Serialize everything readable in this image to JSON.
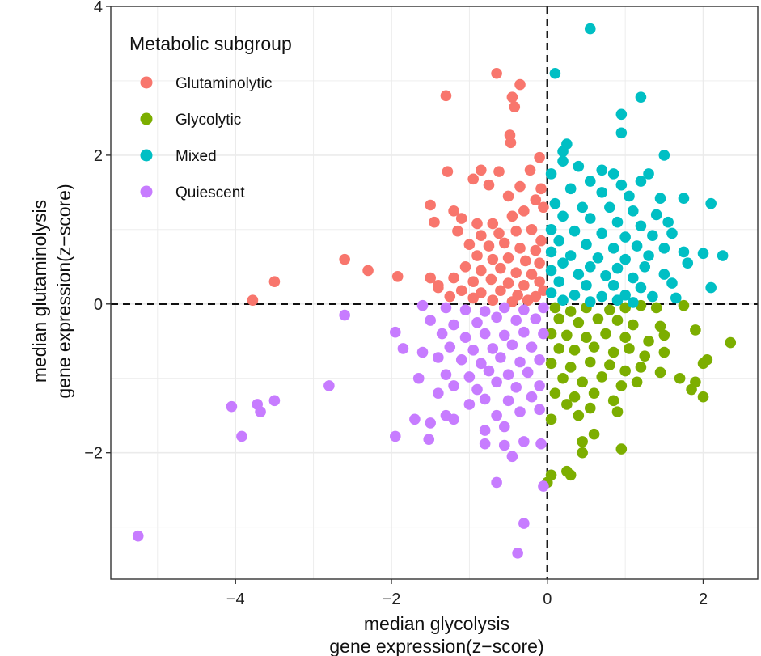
{
  "chart_data": {
    "type": "scatter",
    "xlabel": "median glycolysis",
    "xlabel_line2": "gene expression(z−score)",
    "ylabel": "median glutaminolysis",
    "ylabel_line2": "gene expression(z−score)",
    "xlim": [
      -5.6,
      2.7
    ],
    "ylim": [
      -3.7,
      4.0
    ],
    "xticks": [
      -4,
      -2,
      0,
      2
    ],
    "xtick_labels": [
      "−4",
      "−2",
      "0",
      "2"
    ],
    "yticks": [
      -2,
      0,
      2,
      4
    ],
    "ytick_labels": [
      "−2",
      "0",
      "2",
      "4"
    ],
    "grid": true,
    "reference_lines": {
      "x": 0,
      "y": 0,
      "style": "dashed"
    },
    "legend": {
      "title": "Metabolic subgroup",
      "position": "top-left"
    },
    "series": [
      {
        "name": "Glutaminolytic",
        "color": "#F8766D",
        "points": [
          [
            -0.65,
            3.1
          ],
          [
            -0.35,
            2.95
          ],
          [
            -1.3,
            2.8
          ],
          [
            -0.45,
            2.78
          ],
          [
            -0.42,
            2.65
          ],
          [
            -0.48,
            2.27
          ],
          [
            -0.47,
            2.17
          ],
          [
            -0.1,
            1.97
          ],
          [
            -1.28,
            1.78
          ],
          [
            -0.85,
            1.8
          ],
          [
            -0.62,
            1.78
          ],
          [
            -0.22,
            1.8
          ],
          [
            -0.95,
            1.68
          ],
          [
            -0.75,
            1.6
          ],
          [
            -0.35,
            1.58
          ],
          [
            -0.08,
            1.55
          ],
          [
            -0.5,
            1.45
          ],
          [
            -0.15,
            1.4
          ],
          [
            -1.5,
            1.33
          ],
          [
            -1.2,
            1.25
          ],
          [
            -1.1,
            1.15
          ],
          [
            -0.9,
            1.08
          ],
          [
            -0.7,
            1.08
          ],
          [
            -0.45,
            1.18
          ],
          [
            -0.3,
            1.25
          ],
          [
            -0.05,
            1.3
          ],
          [
            -1.45,
            1.1
          ],
          [
            -1.15,
            0.98
          ],
          [
            -0.85,
            0.92
          ],
          [
            -0.62,
            0.95
          ],
          [
            -0.4,
            0.98
          ],
          [
            -0.2,
            1.0
          ],
          [
            -0.08,
            0.85
          ],
          [
            -1.0,
            0.8
          ],
          [
            -0.75,
            0.78
          ],
          [
            -0.55,
            0.82
          ],
          [
            -0.35,
            0.75
          ],
          [
            -0.15,
            0.72
          ],
          [
            -0.9,
            0.65
          ],
          [
            -0.7,
            0.6
          ],
          [
            -0.5,
            0.62
          ],
          [
            -0.28,
            0.58
          ],
          [
            -0.1,
            0.55
          ],
          [
            -1.05,
            0.5
          ],
          [
            -0.85,
            0.45
          ],
          [
            -0.6,
            0.48
          ],
          [
            -0.4,
            0.42
          ],
          [
            -0.2,
            0.4
          ],
          [
            -1.2,
            0.35
          ],
          [
            -0.95,
            0.3
          ],
          [
            -0.72,
            0.33
          ],
          [
            -0.5,
            0.28
          ],
          [
            -0.3,
            0.25
          ],
          [
            -0.1,
            0.3
          ],
          [
            -1.4,
            0.22
          ],
          [
            -1.1,
            0.18
          ],
          [
            -0.85,
            0.15
          ],
          [
            -0.6,
            0.18
          ],
          [
            -0.38,
            0.12
          ],
          [
            -0.15,
            0.1
          ],
          [
            -1.5,
            0.35
          ],
          [
            -1.4,
            0.25
          ],
          [
            -1.25,
            0.1
          ],
          [
            -0.95,
            0.08
          ],
          [
            -0.7,
            0.05
          ],
          [
            -0.45,
            0.03
          ],
          [
            -0.25,
            0.05
          ],
          [
            -0.05,
            0.18
          ],
          [
            -2.6,
            0.6
          ],
          [
            -2.3,
            0.45
          ],
          [
            -1.92,
            0.37
          ],
          [
            -3.5,
            0.3
          ],
          [
            -3.78,
            0.05
          ]
        ]
      },
      {
        "name": "Glycolytic",
        "color": "#7CAE00",
        "points": [
          [
            0.1,
            -0.05
          ],
          [
            0.3,
            -0.1
          ],
          [
            0.5,
            -0.05
          ],
          [
            0.8,
            -0.08
          ],
          [
            1.0,
            -0.05
          ],
          [
            1.2,
            -0.02
          ],
          [
            1.4,
            -0.05
          ],
          [
            1.75,
            -0.02
          ],
          [
            0.15,
            -0.2
          ],
          [
            0.4,
            -0.25
          ],
          [
            0.65,
            -0.2
          ],
          [
            0.9,
            -0.22
          ],
          [
            1.1,
            -0.28
          ],
          [
            1.45,
            -0.3
          ],
          [
            1.9,
            -0.35
          ],
          [
            0.05,
            -0.4
          ],
          [
            0.25,
            -0.42
          ],
          [
            0.5,
            -0.45
          ],
          [
            0.75,
            -0.4
          ],
          [
            1.0,
            -0.45
          ],
          [
            1.3,
            -0.5
          ],
          [
            1.5,
            -0.42
          ],
          [
            2.35,
            -0.52
          ],
          [
            0.15,
            -0.6
          ],
          [
            0.35,
            -0.62
          ],
          [
            0.6,
            -0.58
          ],
          [
            0.85,
            -0.65
          ],
          [
            1.05,
            -0.6
          ],
          [
            1.25,
            -0.7
          ],
          [
            1.5,
            -0.65
          ],
          [
            2.05,
            -0.75
          ],
          [
            0.05,
            -0.8
          ],
          [
            0.3,
            -0.85
          ],
          [
            0.55,
            -0.78
          ],
          [
            0.8,
            -0.82
          ],
          [
            1.0,
            -0.9
          ],
          [
            1.2,
            -0.85
          ],
          [
            1.45,
            -0.92
          ],
          [
            2.0,
            -0.8
          ],
          [
            0.2,
            -1.0
          ],
          [
            0.45,
            -1.05
          ],
          [
            0.7,
            -0.98
          ],
          [
            0.95,
            -1.1
          ],
          [
            1.15,
            -1.05
          ],
          [
            1.7,
            -1.0
          ],
          [
            1.9,
            -1.05
          ],
          [
            0.1,
            -1.2
          ],
          [
            0.35,
            -1.25
          ],
          [
            0.6,
            -1.2
          ],
          [
            0.85,
            -1.3
          ],
          [
            1.85,
            -1.15
          ],
          [
            2.0,
            -1.25
          ],
          [
            0.25,
            -1.35
          ],
          [
            0.55,
            -1.4
          ],
          [
            0.9,
            -1.45
          ],
          [
            0.05,
            -1.55
          ],
          [
            0.4,
            -1.5
          ],
          [
            0.6,
            -1.75
          ],
          [
            0.45,
            -1.85
          ],
          [
            0.95,
            -1.95
          ],
          [
            0.45,
            -2.0
          ],
          [
            0.05,
            -2.3
          ],
          [
            0.25,
            -2.25
          ],
          [
            0.3,
            -2.3
          ],
          [
            0.0,
            -2.4
          ]
        ]
      },
      {
        "name": "Mixed",
        "color": "#00BFC4",
        "points": [
          [
            0.55,
            3.7
          ],
          [
            0.1,
            3.1
          ],
          [
            1.2,
            2.78
          ],
          [
            0.95,
            2.55
          ],
          [
            0.95,
            2.3
          ],
          [
            0.25,
            2.15
          ],
          [
            0.2,
            2.05
          ],
          [
            0.2,
            1.92
          ],
          [
            0.7,
            1.8
          ],
          [
            0.85,
            1.75
          ],
          [
            1.5,
            2.0
          ],
          [
            1.3,
            1.75
          ],
          [
            0.4,
            1.85
          ],
          [
            0.05,
            1.75
          ],
          [
            0.55,
            1.65
          ],
          [
            0.95,
            1.6
          ],
          [
            1.2,
            1.65
          ],
          [
            0.3,
            1.55
          ],
          [
            0.7,
            1.5
          ],
          [
            1.05,
            1.45
          ],
          [
            1.45,
            1.42
          ],
          [
            1.75,
            1.42
          ],
          [
            0.1,
            1.35
          ],
          [
            0.45,
            1.3
          ],
          [
            0.8,
            1.3
          ],
          [
            1.1,
            1.25
          ],
          [
            1.4,
            1.2
          ],
          [
            2.1,
            1.35
          ],
          [
            0.2,
            1.18
          ],
          [
            0.55,
            1.15
          ],
          [
            0.9,
            1.1
          ],
          [
            1.2,
            1.05
          ],
          [
            1.55,
            1.1
          ],
          [
            0.05,
            1.0
          ],
          [
            0.35,
            0.98
          ],
          [
            0.7,
            0.95
          ],
          [
            1.0,
            0.9
          ],
          [
            1.35,
            0.92
          ],
          [
            1.6,
            0.95
          ],
          [
            0.15,
            0.85
          ],
          [
            0.5,
            0.8
          ],
          [
            0.85,
            0.75
          ],
          [
            1.15,
            0.78
          ],
          [
            1.5,
            0.75
          ],
          [
            0.05,
            0.7
          ],
          [
            0.3,
            0.65
          ],
          [
            0.65,
            0.62
          ],
          [
            1.0,
            0.6
          ],
          [
            1.3,
            0.65
          ],
          [
            1.75,
            0.7
          ],
          [
            2.0,
            0.68
          ],
          [
            2.25,
            0.65
          ],
          [
            0.2,
            0.55
          ],
          [
            0.55,
            0.5
          ],
          [
            0.9,
            0.48
          ],
          [
            1.25,
            0.5
          ],
          [
            1.8,
            0.55
          ],
          [
            0.05,
            0.45
          ],
          [
            0.4,
            0.4
          ],
          [
            0.75,
            0.38
          ],
          [
            1.1,
            0.35
          ],
          [
            1.5,
            0.4
          ],
          [
            0.15,
            0.3
          ],
          [
            0.5,
            0.25
          ],
          [
            0.85,
            0.25
          ],
          [
            1.2,
            0.22
          ],
          [
            1.6,
            0.28
          ],
          [
            2.1,
            0.22
          ],
          [
            0.05,
            0.15
          ],
          [
            0.35,
            0.12
          ],
          [
            0.7,
            0.1
          ],
          [
            1.0,
            0.12
          ],
          [
            1.35,
            0.1
          ],
          [
            1.65,
            0.08
          ],
          [
            0.2,
            0.05
          ],
          [
            0.55,
            0.03
          ],
          [
            0.9,
            0.05
          ],
          [
            1.1,
            0.02
          ]
        ]
      },
      {
        "name": "Quiescent",
        "color": "#C77CFF",
        "points": [
          [
            -0.05,
            -0.05
          ],
          [
            -0.3,
            -0.08
          ],
          [
            -0.55,
            -0.05
          ],
          [
            -0.8,
            -0.1
          ],
          [
            -1.05,
            -0.08
          ],
          [
            -1.3,
            -0.05
          ],
          [
            -1.6,
            -0.02
          ],
          [
            -0.15,
            -0.2
          ],
          [
            -0.4,
            -0.22
          ],
          [
            -0.65,
            -0.18
          ],
          [
            -0.9,
            -0.25
          ],
          [
            -1.2,
            -0.28
          ],
          [
            -1.5,
            -0.22
          ],
          [
            -2.6,
            -0.15
          ],
          [
            -0.05,
            -0.4
          ],
          [
            -0.3,
            -0.38
          ],
          [
            -0.55,
            -0.42
          ],
          [
            -0.8,
            -0.4
          ],
          [
            -1.05,
            -0.45
          ],
          [
            -1.35,
            -0.4
          ],
          [
            -1.95,
            -0.38
          ],
          [
            -0.2,
            -0.58
          ],
          [
            -0.45,
            -0.55
          ],
          [
            -0.7,
            -0.6
          ],
          [
            -0.95,
            -0.62
          ],
          [
            -1.25,
            -0.58
          ],
          [
            -1.6,
            -0.65
          ],
          [
            -1.85,
            -0.6
          ],
          [
            -0.1,
            -0.75
          ],
          [
            -0.35,
            -0.78
          ],
          [
            -0.6,
            -0.72
          ],
          [
            -0.85,
            -0.8
          ],
          [
            -1.1,
            -0.75
          ],
          [
            -1.4,
            -0.72
          ],
          [
            -0.25,
            -0.92
          ],
          [
            -0.5,
            -0.95
          ],
          [
            -0.75,
            -0.9
          ],
          [
            -1.0,
            -0.98
          ],
          [
            -1.3,
            -0.95
          ],
          [
            -1.65,
            -1.0
          ],
          [
            -0.1,
            -1.1
          ],
          [
            -0.4,
            -1.12
          ],
          [
            -0.65,
            -1.05
          ],
          [
            -0.9,
            -1.15
          ],
          [
            -1.2,
            -1.1
          ],
          [
            -2.8,
            -1.1
          ],
          [
            -0.2,
            -1.25
          ],
          [
            -0.5,
            -1.3
          ],
          [
            -0.8,
            -1.28
          ],
          [
            -1.0,
            -1.35
          ],
          [
            -1.4,
            -1.2
          ],
          [
            -0.1,
            -1.42
          ],
          [
            -0.35,
            -1.45
          ],
          [
            -0.65,
            -1.5
          ],
          [
            -1.3,
            -1.5
          ],
          [
            -1.7,
            -1.55
          ],
          [
            -0.55,
            -1.65
          ],
          [
            -0.8,
            -1.7
          ],
          [
            -1.5,
            -1.6
          ],
          [
            -1.2,
            -1.55
          ],
          [
            -3.5,
            -1.3
          ],
          [
            -3.72,
            -1.35
          ],
          [
            -3.68,
            -1.45
          ],
          [
            -4.05,
            -1.38
          ],
          [
            -3.92,
            -1.78
          ],
          [
            -1.95,
            -1.78
          ],
          [
            -1.52,
            -1.82
          ],
          [
            -0.8,
            -1.88
          ],
          [
            -0.55,
            -1.9
          ],
          [
            -0.3,
            -1.85
          ],
          [
            -0.08,
            -1.88
          ],
          [
            -0.45,
            -2.05
          ],
          [
            -0.65,
            -2.4
          ],
          [
            -0.05,
            -2.45
          ],
          [
            -0.3,
            -2.95
          ],
          [
            -0.38,
            -3.35
          ],
          [
            -5.25,
            -3.12
          ]
        ]
      }
    ]
  }
}
